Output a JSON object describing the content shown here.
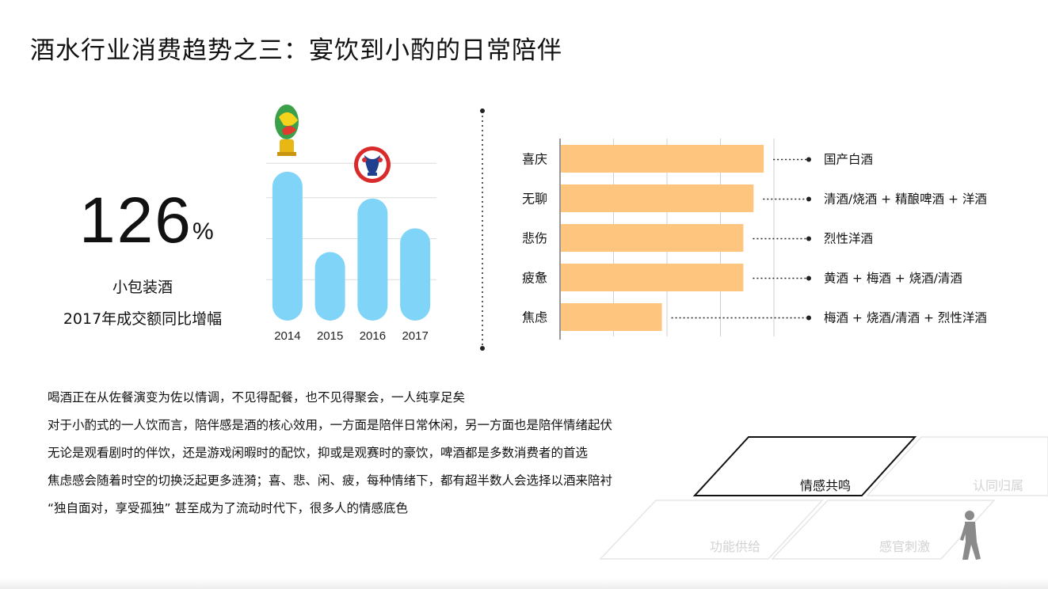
{
  "title": "酒水行业消费趋势之三：宴饮到小酌的日常陪伴",
  "stat": {
    "value": "126",
    "unit": "%",
    "line1": "小包装酒",
    "line2": "2017年成交额同比增幅"
  },
  "chart_data": [
    {
      "type": "bar",
      "categories": [
        "2014",
        "2015",
        "2016",
        "2017"
      ],
      "values": [
        100,
        46,
        82,
        62
      ],
      "ylim": [
        0,
        110
      ],
      "grid": true,
      "colors": {
        "bar": "#7fd4f7"
      },
      "icons": [
        "world-cup-trophy-logo",
        "euro-cup-logo"
      ]
    },
    {
      "type": "bar",
      "orientation": "horizontal",
      "categories": [
        "喜庆",
        "无聊",
        "悲伤",
        "疲惫",
        "焦虑"
      ],
      "values": [
        100,
        95,
        90,
        90,
        50
      ],
      "xlim": [
        0,
        105
      ],
      "grid": true,
      "annotations": [
        "国产白酒",
        "清酒/烧酒 + 精酿啤酒 + 洋酒",
        "烈性洋酒",
        "黄酒 + 梅酒 + 烧酒/清酒",
        "梅酒 + 烧酒/清酒 + 烈性洋酒"
      ],
      "colors": {
        "bar": "#fdc57d"
      }
    }
  ],
  "paragraph": [
    "喝酒正在从佐餐演变为佐以情调，不见得配餐，也不见得聚会，一人纯享足矣",
    "对于小酌式的一人饮而言，陪伴感是酒的核心效用，一方面是陪伴日常休闲，另一方面也是陪伴情绪起伏",
    "无论是观看剧时的伴饮，还是游戏闲暇时的配饮，抑或是观赛时的豪饮，啤酒都是多数消费者的首选",
    "焦虑感会随着时空的切换泛起更多涟漪；喜、悲、闲、疲，每种情绪下，都有超半数人会选择以酒来陪衬",
    "“独自面对，享受孤独” 甚至成为了流动时代下，很多人的情感底色"
  ],
  "pyramid": [
    "情感共鸣",
    "认同归属",
    "功能供给",
    "感官刺激"
  ]
}
